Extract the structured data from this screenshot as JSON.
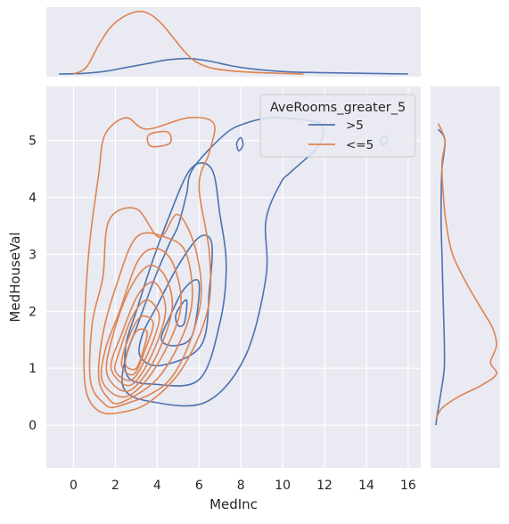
{
  "chart_data": {
    "type": "kde-jointplot",
    "xlabel": "MedInc",
    "ylabel": "MedHouseVal",
    "xlim": [
      -1.3,
      16.6
    ],
    "ylim": [
      -0.75,
      5.95
    ],
    "xticks": [
      0,
      2,
      4,
      6,
      8,
      10,
      12,
      14,
      16
    ],
    "yticks": [
      0,
      1,
      2,
      3,
      4,
      5
    ],
    "grid": true,
    "background": "#eaeaf2",
    "legend": {
      "title": "AveRooms_greater_5",
      "placement": "top-right"
    },
    "series": [
      {
        "name": ">5",
        "color": "#4c72b0",
        "contours": [
          [
            [
              6.3,
              0.4
            ],
            [
              8.2,
              1.2
            ],
            [
              9.2,
              2.6
            ],
            [
              9.2,
              3.6
            ],
            [
              9.9,
              4.25
            ],
            [
              10.4,
              4.45
            ],
            [
              11.7,
              4.9
            ],
            [
              11.9,
              5.25
            ],
            [
              11.2,
              5.35
            ],
            [
              9.5,
              5.4
            ],
            [
              8.2,
              5.3
            ],
            [
              7.2,
              5.1
            ],
            [
              5.7,
              4.5
            ],
            [
              5.4,
              4.05
            ],
            [
              5.0,
              3.5
            ],
            [
              4.6,
              3.2
            ],
            [
              3.9,
              2.6
            ],
            [
              3.1,
              1.8
            ],
            [
              2.5,
              1.2
            ],
            [
              2.4,
              0.65
            ],
            [
              3.6,
              0.42
            ]
          ],
          [
            [
              6.0,
              0.8
            ],
            [
              7.0,
              1.8
            ],
            [
              7.3,
              2.8
            ],
            [
              7.0,
              3.7
            ],
            [
              6.6,
              4.5
            ],
            [
              5.6,
              4.5
            ],
            [
              4.5,
              3.6
            ],
            [
              3.7,
              2.8
            ],
            [
              3.0,
              2.0
            ],
            [
              2.5,
              1.4
            ],
            [
              2.6,
              0.85
            ],
            [
              3.8,
              0.72
            ]
          ],
          [
            [
              6.1,
              1.4
            ],
            [
              6.5,
              2.4
            ],
            [
              6.6,
              3.2
            ],
            [
              6.0,
              3.3
            ],
            [
              5.0,
              2.8
            ],
            [
              4.0,
              2.1
            ],
            [
              3.3,
              1.6
            ],
            [
              3.2,
              1.2
            ],
            [
              4.2,
              1.05
            ]
          ],
          [
            [
              5.7,
              1.6
            ],
            [
              6.0,
              2.5
            ],
            [
              5.3,
              2.4
            ],
            [
              4.6,
              1.9
            ],
            [
              4.2,
              1.5
            ],
            [
              4.9,
              1.4
            ]
          ],
          [
            [
              5.3,
              1.8
            ],
            [
              5.4,
              2.2
            ],
            [
              4.9,
              1.95
            ],
            [
              5.0,
              1.75
            ]
          ],
          [
            [
              7.9,
              4.82
            ],
            [
              8.1,
              4.92
            ],
            [
              8.0,
              5.05
            ],
            [
              7.8,
              4.95
            ]
          ],
          [
            [
              14.8,
              4.92
            ],
            [
              15.0,
              5.0
            ],
            [
              14.9,
              5.08
            ],
            [
              14.7,
              5.02
            ]
          ]
        ],
        "marginal_x": [
          [
            -0.7,
            0.0
          ],
          [
            0.5,
            0.01
          ],
          [
            1.5,
            0.04
          ],
          [
            2.5,
            0.1
          ],
          [
            3.5,
            0.16
          ],
          [
            4.5,
            0.22
          ],
          [
            5.5,
            0.24
          ],
          [
            6.5,
            0.2
          ],
          [
            7.5,
            0.13
          ],
          [
            8.5,
            0.08
          ],
          [
            9.5,
            0.05
          ],
          [
            10.5,
            0.03
          ],
          [
            12,
            0.02
          ],
          [
            14,
            0.01
          ],
          [
            16,
            0.0
          ]
        ],
        "marginal_y": [
          [
            5.2,
            0.03
          ],
          [
            5.0,
            0.12
          ],
          [
            4.5,
            0.08
          ],
          [
            4.0,
            0.07
          ],
          [
            3.5,
            0.07
          ],
          [
            3.0,
            0.08
          ],
          [
            2.5,
            0.09
          ],
          [
            2.0,
            0.1
          ],
          [
            1.5,
            0.11
          ],
          [
            1.0,
            0.11
          ],
          [
            0.6,
            0.07
          ],
          [
            0.2,
            0.02
          ],
          [
            0.0,
            0.0
          ]
        ]
      },
      {
        "name": "<=5",
        "color": "#dd8452",
        "contours": [
          [
            [
              2.2,
              0.22
            ],
            [
              3.6,
              0.4
            ],
            [
              5.2,
              1.0
            ],
            [
              6.4,
              2.0
            ],
            [
              6.5,
              3.0
            ],
            [
              6.0,
              4.2
            ],
            [
              6.5,
              4.8
            ],
            [
              6.7,
              5.3
            ],
            [
              5.5,
              5.4
            ],
            [
              3.5,
              5.2
            ],
            [
              2.5,
              5.4
            ],
            [
              1.5,
              5.1
            ],
            [
              1.2,
              4.4
            ],
            [
              0.8,
              3.3
            ],
            [
              0.6,
              2.4
            ],
            [
              0.5,
              1.4
            ],
            [
              0.6,
              0.6
            ],
            [
              1.2,
              0.25
            ]
          ],
          [
            [
              2.2,
              0.34
            ],
            [
              4.6,
              0.8
            ],
            [
              6.0,
              2.0
            ],
            [
              5.9,
              3.0
            ],
            [
              5.0,
              3.7
            ],
            [
              4.1,
              3.3
            ],
            [
              3.0,
              3.8
            ],
            [
              1.7,
              3.6
            ],
            [
              1.4,
              2.6
            ],
            [
              0.9,
              1.8
            ],
            [
              0.8,
              0.8
            ],
            [
              1.4,
              0.4
            ]
          ],
          [
            [
              2.3,
              0.4
            ],
            [
              4.2,
              0.9
            ],
            [
              5.6,
              2.0
            ],
            [
              5.4,
              3.0
            ],
            [
              4.4,
              3.3
            ],
            [
              3.0,
              3.3
            ],
            [
              2.0,
              2.4
            ],
            [
              1.4,
              1.6
            ],
            [
              1.2,
              0.85
            ],
            [
              1.6,
              0.5
            ]
          ],
          [
            [
              2.5,
              0.5
            ],
            [
              3.9,
              1.0
            ],
            [
              5.1,
              2.0
            ],
            [
              4.8,
              2.8
            ],
            [
              4.0,
              3.1
            ],
            [
              3.1,
              2.9
            ],
            [
              2.2,
              2.0
            ],
            [
              1.5,
              1.3
            ],
            [
              1.4,
              0.75
            ]
          ],
          [
            [
              2.6,
              0.6
            ],
            [
              3.8,
              1.1
            ],
            [
              4.7,
              2.0
            ],
            [
              4.4,
              2.6
            ],
            [
              3.6,
              2.8
            ],
            [
              2.7,
              2.4
            ],
            [
              1.9,
              1.6
            ],
            [
              1.6,
              0.9
            ]
          ],
          [
            [
              2.7,
              0.7
            ],
            [
              3.7,
              1.2
            ],
            [
              4.4,
              2.0
            ],
            [
              3.9,
              2.5
            ],
            [
              3.1,
              2.3
            ],
            [
              2.3,
              1.6
            ],
            [
              1.8,
              1.0
            ]
          ],
          [
            [
              2.8,
              0.8
            ],
            [
              3.6,
              1.3
            ],
            [
              4.1,
              1.9
            ],
            [
              3.5,
              2.2
            ],
            [
              2.8,
              1.9
            ],
            [
              2.2,
              1.3
            ],
            [
              2.0,
              0.95
            ]
          ],
          [
            [
              2.9,
              0.9
            ],
            [
              3.5,
              1.4
            ],
            [
              3.8,
              1.8
            ],
            [
              3.2,
              1.9
            ],
            [
              2.6,
              1.5
            ],
            [
              2.3,
              1.05
            ]
          ],
          [
            [
              3.0,
              1.0
            ],
            [
              3.4,
              1.4
            ],
            [
              3.5,
              1.65
            ],
            [
              3.0,
              1.65
            ],
            [
              2.6,
              1.3
            ],
            [
              2.5,
              1.05
            ]
          ],
          [
            [
              3.7,
              4.9
            ],
            [
              4.6,
              4.95
            ],
            [
              4.5,
              5.15
            ],
            [
              3.6,
              5.1
            ]
          ]
        ],
        "marginal_x": [
          [
            0.0,
            0.0
          ],
          [
            0.6,
            0.1
          ],
          [
            1.2,
            0.45
          ],
          [
            1.7,
            0.7
          ],
          [
            2.2,
            0.85
          ],
          [
            2.8,
            0.95
          ],
          [
            3.3,
            0.97
          ],
          [
            3.8,
            0.9
          ],
          [
            4.3,
            0.75
          ],
          [
            4.8,
            0.55
          ],
          [
            5.3,
            0.35
          ],
          [
            5.8,
            0.2
          ],
          [
            6.5,
            0.1
          ],
          [
            7.5,
            0.05
          ],
          [
            9,
            0.02
          ],
          [
            11,
            0.0
          ]
        ],
        "marginal_y": [
          [
            5.3,
            0.03
          ],
          [
            5.0,
            0.12
          ],
          [
            4.6,
            0.08
          ],
          [
            4.0,
            0.1
          ],
          [
            3.5,
            0.14
          ],
          [
            3.0,
            0.22
          ],
          [
            2.5,
            0.4
          ],
          [
            2.0,
            0.62
          ],
          [
            1.7,
            0.75
          ],
          [
            1.4,
            0.8
          ],
          [
            1.1,
            0.72
          ],
          [
            0.9,
            0.8
          ],
          [
            0.7,
            0.6
          ],
          [
            0.5,
            0.3
          ],
          [
            0.3,
            0.08
          ],
          [
            0.1,
            0.0
          ]
        ]
      }
    ]
  }
}
